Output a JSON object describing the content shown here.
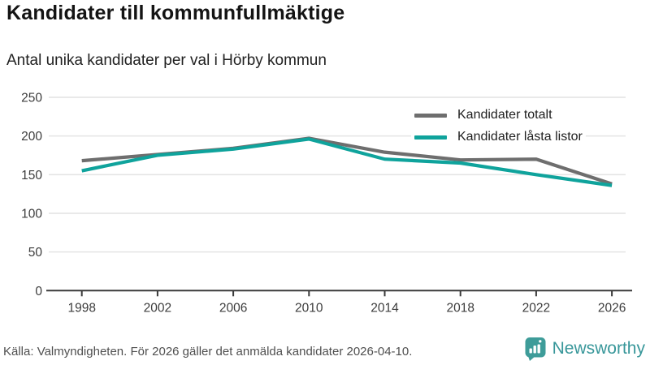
{
  "title": "Kandidater till kommunfullmäktige",
  "subtitle": "Antal unika kandidater per val i Hörby kommun",
  "footer": {
    "source": "Källa: Valmyndigheten. För 2026 gäller det anmälda kandidater 2026-04-10."
  },
  "logo": {
    "text": "Newsworthy",
    "icon": "bar-chart-speech-bubble-icon",
    "color": "#3e9c99"
  },
  "colors": {
    "total_line": "#6e6e6e",
    "locked_line": "#0fa39c",
    "grid": "#e4e4e4",
    "axis": "#3a3a3a",
    "tick_label": "#3c3c3c"
  },
  "chart_data": {
    "type": "line",
    "title": "Kandidater till kommunfullmäktige",
    "subtitle": "Antal unika kandidater per val i Hörby kommun",
    "x": [
      1998,
      2002,
      2006,
      2010,
      2014,
      2018,
      2022,
      2026
    ],
    "xticklabels": [
      "1998",
      "2002",
      "2006",
      "2010",
      "2014",
      "2018",
      "2022",
      "2026"
    ],
    "series": [
      {
        "name": "Kandidater totalt",
        "color": "#6e6e6e",
        "values": [
          168,
          176,
          184,
          197,
          179,
          169,
          170,
          138
        ]
      },
      {
        "name": "Kandidater låsta listor",
        "color": "#0fa39c",
        "values": [
          155,
          175,
          183,
          196,
          170,
          165,
          150,
          136
        ]
      }
    ],
    "ylim": [
      0,
      250
    ],
    "yticks": [
      0,
      50,
      100,
      150,
      200,
      250
    ],
    "grid": true,
    "legend_position": "top-right"
  }
}
